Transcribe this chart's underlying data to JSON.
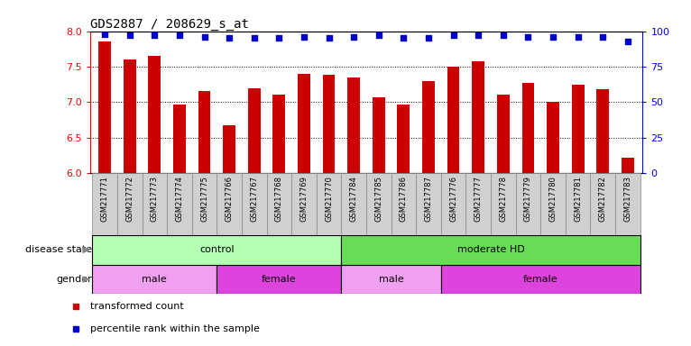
{
  "title": "GDS2887 / 208629_s_at",
  "samples": [
    "GSM217771",
    "GSM217772",
    "GSM217773",
    "GSM217774",
    "GSM217775",
    "GSM217766",
    "GSM217767",
    "GSM217768",
    "GSM217769",
    "GSM217770",
    "GSM217784",
    "GSM217785",
    "GSM217786",
    "GSM217787",
    "GSM217776",
    "GSM217777",
    "GSM217778",
    "GSM217779",
    "GSM217780",
    "GSM217781",
    "GSM217782",
    "GSM217783"
  ],
  "bar_values": [
    7.85,
    7.6,
    7.65,
    6.97,
    7.15,
    6.67,
    7.2,
    7.1,
    7.4,
    7.38,
    7.35,
    7.07,
    6.97,
    7.3,
    7.5,
    7.58,
    7.1,
    7.27,
    7.0,
    7.25,
    7.18,
    6.22
  ],
  "percentile_values": [
    98,
    97,
    97,
    97,
    96,
    95,
    95,
    95,
    96,
    95,
    96,
    97,
    95,
    95,
    97,
    97,
    97,
    96,
    96,
    96,
    96,
    93
  ],
  "ylim_left": [
    6.0,
    8.0
  ],
  "ylim_right": [
    0,
    100
  ],
  "yticks_left": [
    6.0,
    6.5,
    7.0,
    7.5,
    8.0
  ],
  "yticks_right": [
    0,
    25,
    50,
    75,
    100
  ],
  "bar_color": "#cc0000",
  "dot_color": "#0000cc",
  "disease_state_groups": [
    {
      "label": "control",
      "start": 0,
      "end": 10,
      "color": "#b3ffb3"
    },
    {
      "label": "moderate HD",
      "start": 10,
      "end": 22,
      "color": "#66dd55"
    }
  ],
  "gender_groups": [
    {
      "label": "male",
      "start": 0,
      "end": 5,
      "color": "#f0a0f0"
    },
    {
      "label": "female",
      "start": 5,
      "end": 10,
      "color": "#dd44dd"
    },
    {
      "label": "male",
      "start": 10,
      "end": 14,
      "color": "#f0a0f0"
    },
    {
      "label": "female",
      "start": 14,
      "end": 22,
      "color": "#dd44dd"
    }
  ],
  "legend_items": [
    {
      "label": "transformed count",
      "color": "#cc0000"
    },
    {
      "label": "percentile rank within the sample",
      "color": "#0000cc"
    }
  ],
  "disease_label": "disease state",
  "gender_label": "gender",
  "background_color": "#ffffff",
  "xticklabel_bg": "#d0d0d0",
  "bar_width": 0.5
}
